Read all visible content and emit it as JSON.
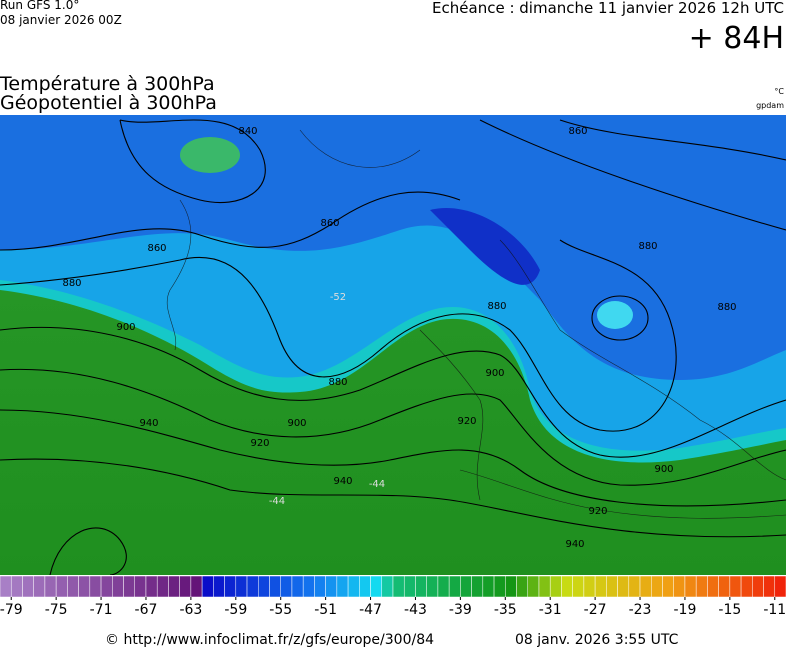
{
  "header": {
    "run": "Run GFS 1.0°",
    "run_date": "08 janvier 2026 00Z",
    "valid": "Echéance : dimanche 11 janvier 2026 12h UTC",
    "lead": "+ 84H",
    "title_temperature": "Température à 300hPa",
    "title_geopotential": "Géopotentiel à 300hPa",
    "unit_temperature": "°C",
    "unit_geopotential": "gpdam"
  },
  "map": {
    "contour_labels": [
      "840",
      "860",
      "860",
      "860",
      "880",
      "880",
      "880",
      "880",
      "880",
      "900",
      "900",
      "900",
      "900",
      "920",
      "920",
      "920",
      "940",
      "940",
      "940"
    ],
    "temperature_labels": [
      "-52",
      "-44",
      "-44"
    ]
  },
  "colorbar": {
    "range": [
      -80,
      -10
    ],
    "ticks": [
      -79,
      -75,
      -71,
      -67,
      -63,
      -59,
      -55,
      -51,
      -47,
      -43,
      -39,
      -35,
      -31,
      -27,
      -23,
      -19,
      -15,
      -11
    ]
  },
  "footer": {
    "source": "© http://www.infoclimat.fr/z/gfs/europe/300/84",
    "generated": "08 janv. 2026  3:55 UTC"
  }
}
